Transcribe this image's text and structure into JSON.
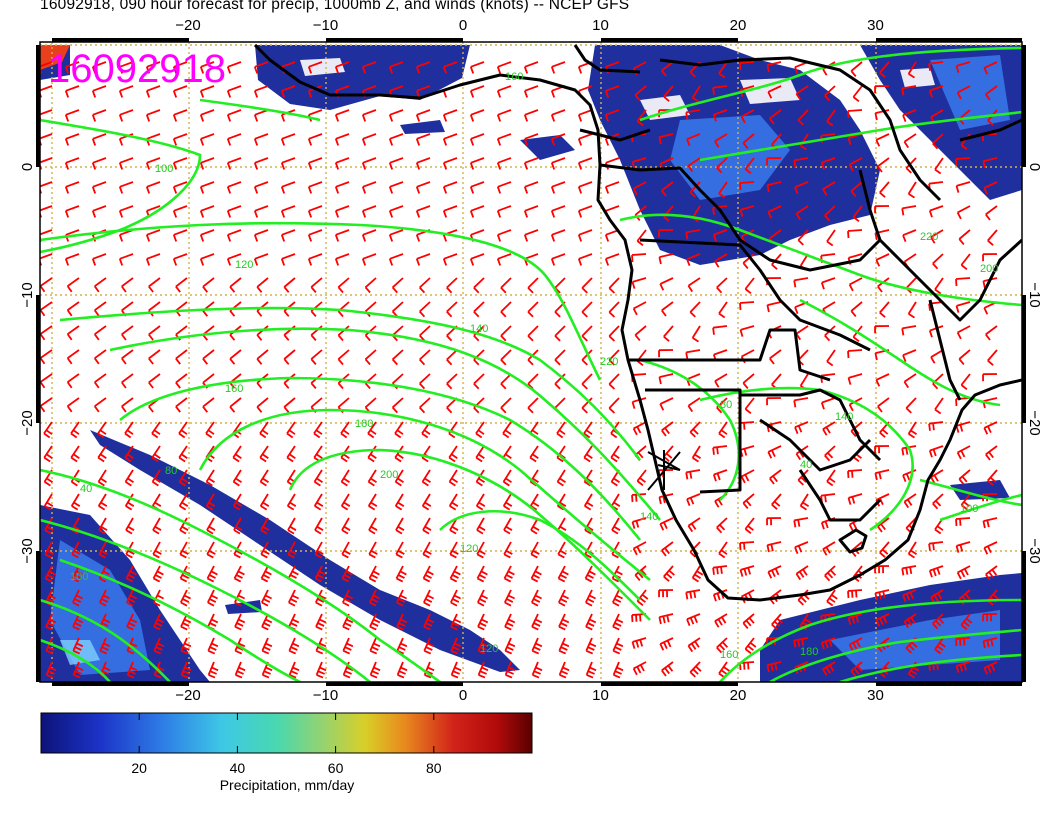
{
  "title": "16092918, 090 hour forecast for precip, 1000mb Z, and winds (knots) -- NCEP GFS",
  "stamp": "16092918",
  "axes": {
    "lon_ticks": [
      {
        "value": -20,
        "label": "−20"
      },
      {
        "value": -10,
        "label": "−10"
      },
      {
        "value": 0,
        "label": "0"
      },
      {
        "value": 10,
        "label": "10"
      },
      {
        "value": 20,
        "label": "20"
      },
      {
        "value": 30,
        "label": "30"
      }
    ],
    "lat_ticks": [
      {
        "value": 0,
        "label": "0"
      },
      {
        "value": -10,
        "label": "−10"
      },
      {
        "value": -20,
        "label": "−20"
      },
      {
        "value": -30,
        "label": "−30"
      }
    ]
  },
  "contour_labels": [
    "100",
    "120",
    "140",
    "160",
    "180",
    "200",
    "220",
    "80",
    "40"
  ],
  "colorbar": {
    "title": "Precipitation, mm/day",
    "labels": [
      {
        "value": 20,
        "label": "20"
      },
      {
        "value": 40,
        "label": "40"
      },
      {
        "value": 60,
        "label": "60"
      },
      {
        "value": 80,
        "label": "80"
      }
    ],
    "range": [
      0,
      100
    ]
  },
  "colors": {
    "wind": "#ff0000",
    "contours": "#00ee00",
    "stamp": "#ff00ff",
    "precip_low": "#1a2a9c",
    "grid": "#d4b24a"
  }
}
